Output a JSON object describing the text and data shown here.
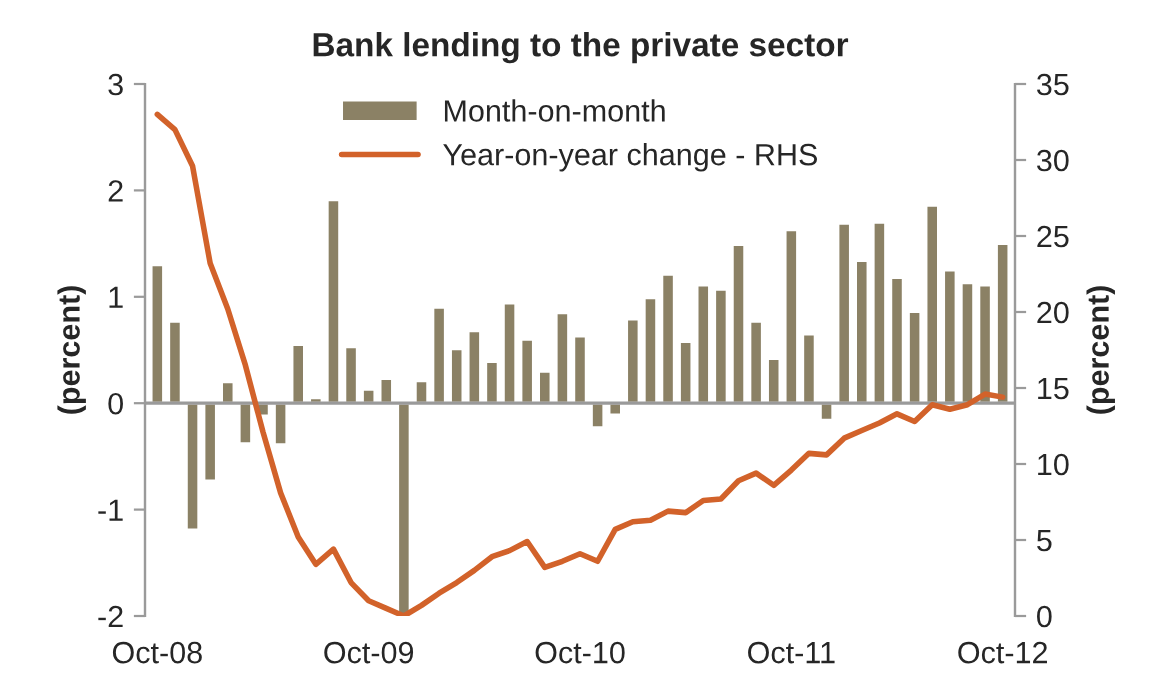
{
  "chart_data": {
    "type": "bar",
    "title": "Bank lending to the private sector",
    "categories": [
      "Oct-08",
      null,
      null,
      null,
      null,
      null,
      null,
      null,
      null,
      null,
      null,
      null,
      "Oct-09",
      null,
      null,
      null,
      null,
      null,
      null,
      null,
      null,
      null,
      null,
      null,
      "Oct-10",
      null,
      null,
      null,
      null,
      null,
      null,
      null,
      null,
      null,
      null,
      null,
      "Oct-11",
      null,
      null,
      null,
      null,
      null,
      null,
      null,
      null,
      null,
      null,
      null,
      "Oct-12"
    ],
    "series": [
      {
        "name": "Month-on-month",
        "color": "#8b8165",
        "values": [
          1.3,
          0.77,
          -1.19,
          -0.73,
          0.2,
          -0.38,
          -0.12,
          -0.39,
          0.55,
          0.05,
          1.91,
          0.53,
          0.13,
          0.23,
          -2.0,
          0.21,
          0.9,
          0.51,
          0.68,
          0.39,
          0.94,
          0.6,
          0.3,
          0.85,
          0.63,
          -0.23,
          -0.11,
          0.79,
          0.99,
          1.21,
          0.58,
          1.11,
          1.07,
          1.49,
          0.77,
          0.42,
          1.63,
          0.65,
          -0.16,
          1.69,
          1.34,
          1.7,
          1.18,
          0.86,
          1.86,
          1.25,
          1.13,
          1.11,
          1.5
        ]
      },
      {
        "name": "Year-on-year change - RHS",
        "type": "line",
        "axis": "y2",
        "color": "#d2622a",
        "values": [
          33.0,
          32.0,
          29.6,
          23.2,
          20.2,
          16.5,
          12.1,
          8.1,
          5.2,
          3.4,
          4.4,
          2.2,
          1.0,
          0.5,
          0.0,
          0.7,
          1.5,
          2.2,
          3.0,
          3.9,
          4.3,
          4.9,
          3.2,
          3.6,
          4.1,
          3.6,
          5.7,
          6.2,
          6.3,
          6.9,
          6.8,
          7.6,
          7.7,
          8.9,
          9.4,
          8.6,
          9.6,
          10.7,
          10.6,
          11.7,
          12.2,
          12.7,
          13.3,
          12.8,
          13.9,
          13.6,
          13.9,
          14.6,
          14.4
        ]
      }
    ],
    "ylabel": "(percent)",
    "y2label": "(percent)",
    "ylim": [
      -2,
      3
    ],
    "yticks": [
      -2,
      -1,
      0,
      1,
      2,
      3
    ],
    "y2lim": [
      0,
      35
    ],
    "y2ticks": [
      0,
      5,
      10,
      15,
      20,
      25,
      30,
      35
    ],
    "ref_lines": [
      {
        "axis": "y",
        "value": 0,
        "color": "#9a9a9a"
      }
    ],
    "legend": "top",
    "grid": false
  }
}
